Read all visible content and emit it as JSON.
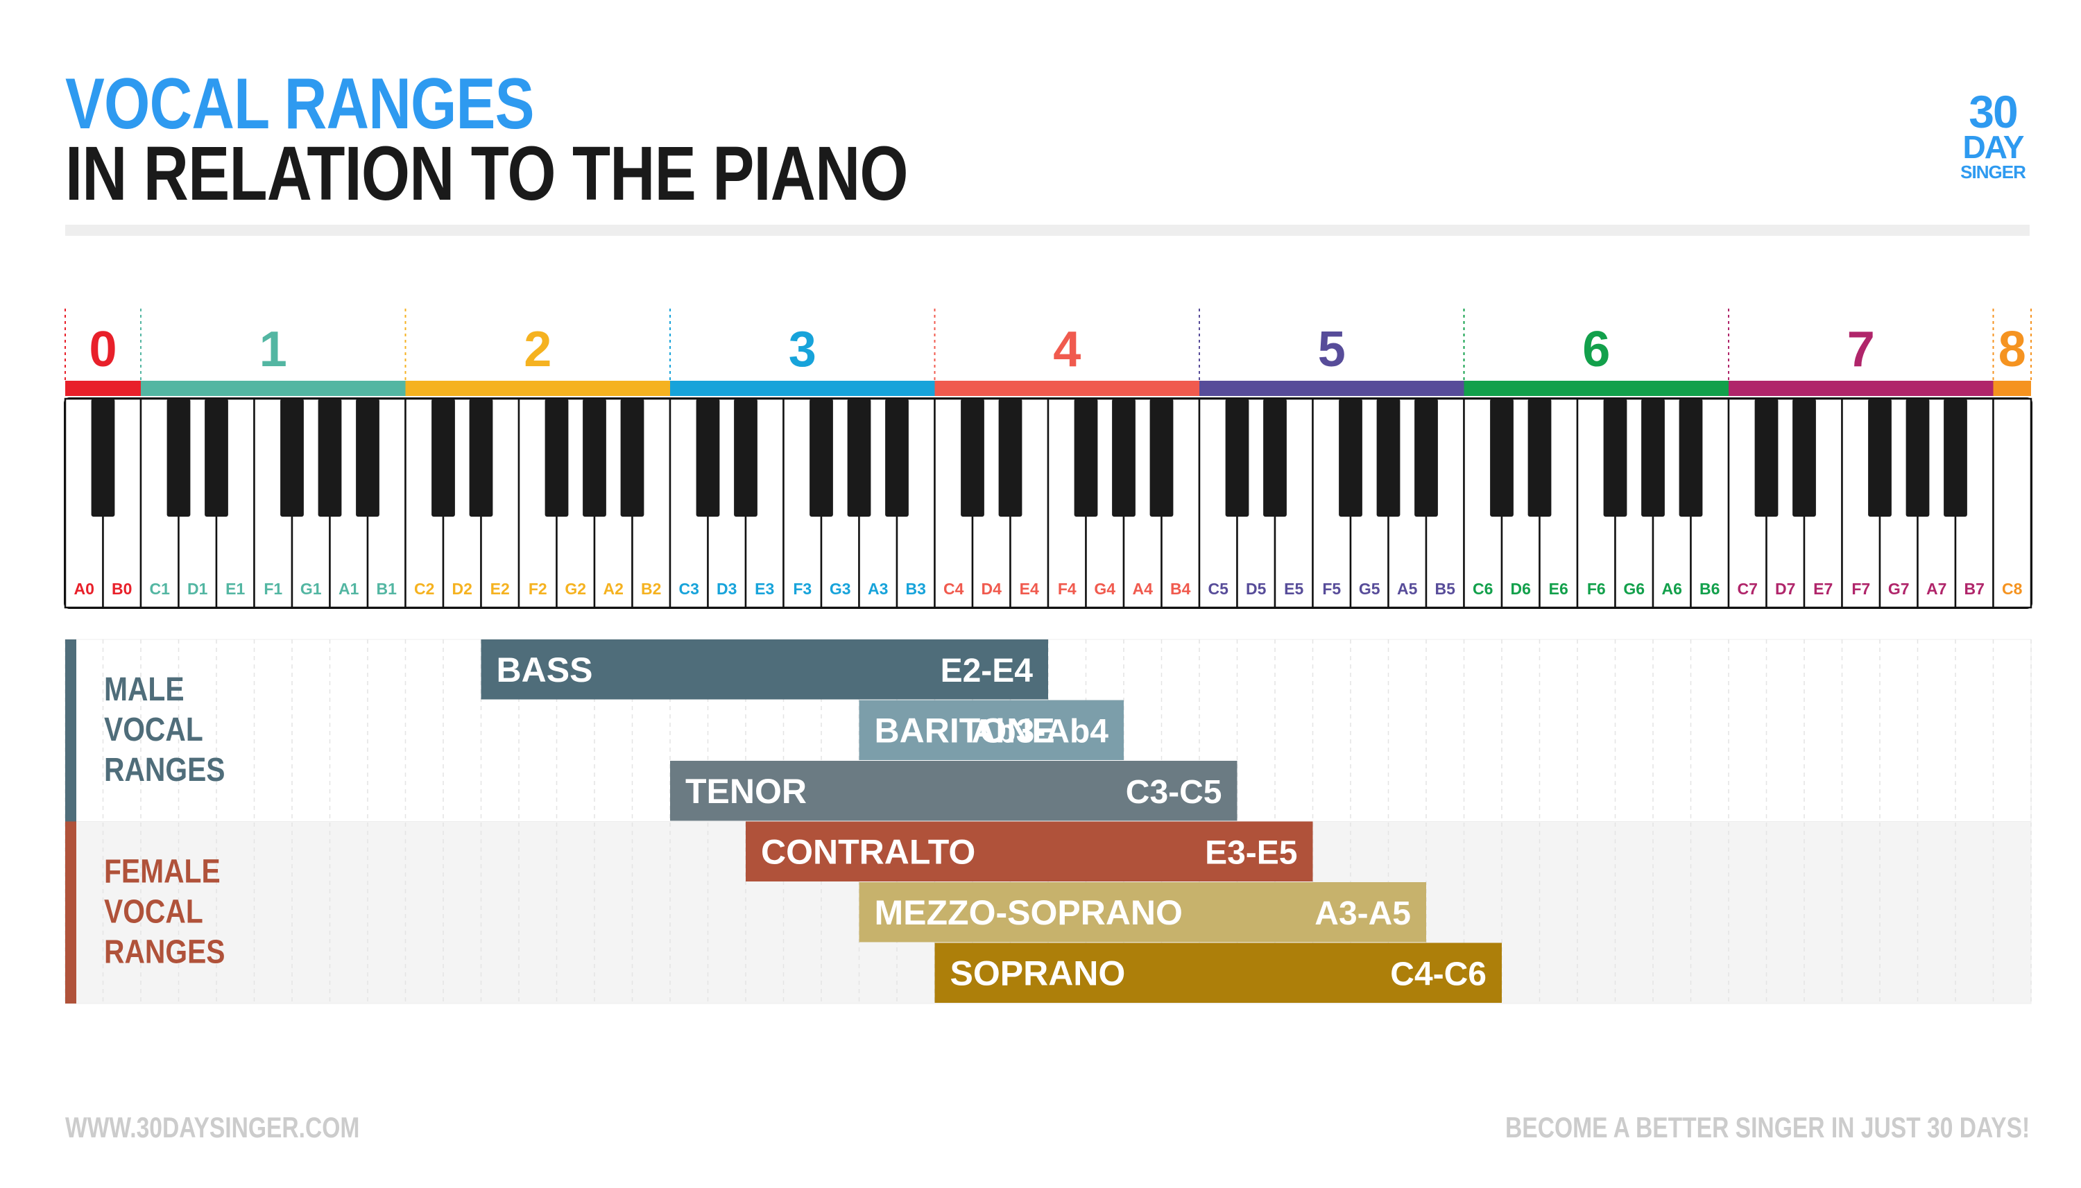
{
  "title": {
    "line1": "VOCAL RANGES",
    "line2": "IN RELATION TO THE PIANO"
  },
  "logo": {
    "line1": "30",
    "line2": "DAY",
    "line3": "SINGER",
    "color": "#2e9af0"
  },
  "footer": {
    "left": "WWW.30DAYSINGER.COM",
    "right": "BECOME A BETTER SINGER IN JUST 30 DAYS!"
  },
  "chart_data": {
    "type": "range-bars-on-piano",
    "octaves": [
      {
        "label": "0",
        "color": "#e8202a"
      },
      {
        "label": "1",
        "color": "#53b6a2"
      },
      {
        "label": "2",
        "color": "#f5b220"
      },
      {
        "label": "3",
        "color": "#17a3da"
      },
      {
        "label": "4",
        "color": "#f05a4e"
      },
      {
        "label": "5",
        "color": "#574c99"
      },
      {
        "label": "6",
        "color": "#12a04b"
      },
      {
        "label": "7",
        "color": "#b0256a"
      },
      {
        "label": "8",
        "color": "#f59320"
      }
    ],
    "keys": [
      {
        "note": "A0",
        "octave": 0
      },
      {
        "note": "B0",
        "octave": 0
      },
      {
        "note": "C1",
        "octave": 1
      },
      {
        "note": "D1",
        "octave": 1
      },
      {
        "note": "E1",
        "octave": 1
      },
      {
        "note": "F1",
        "octave": 1
      },
      {
        "note": "G1",
        "octave": 1
      },
      {
        "note": "A1",
        "octave": 1
      },
      {
        "note": "B1",
        "octave": 1
      },
      {
        "note": "C2",
        "octave": 2
      },
      {
        "note": "D2",
        "octave": 2
      },
      {
        "note": "E2",
        "octave": 2
      },
      {
        "note": "F2",
        "octave": 2
      },
      {
        "note": "G2",
        "octave": 2
      },
      {
        "note": "A2",
        "octave": 2
      },
      {
        "note": "B2",
        "octave": 2
      },
      {
        "note": "C3",
        "octave": 3
      },
      {
        "note": "D3",
        "octave": 3
      },
      {
        "note": "E3",
        "octave": 3
      },
      {
        "note": "F3",
        "octave": 3
      },
      {
        "note": "G3",
        "octave": 3
      },
      {
        "note": "A3",
        "octave": 3
      },
      {
        "note": "B3",
        "octave": 3
      },
      {
        "note": "C4",
        "octave": 4
      },
      {
        "note": "D4",
        "octave": 4
      },
      {
        "note": "E4",
        "octave": 4
      },
      {
        "note": "F4",
        "octave": 4
      },
      {
        "note": "G4",
        "octave": 4
      },
      {
        "note": "A4",
        "octave": 4
      },
      {
        "note": "B4",
        "octave": 4
      },
      {
        "note": "C5",
        "octave": 5
      },
      {
        "note": "D5",
        "octave": 5
      },
      {
        "note": "E5",
        "octave": 5
      },
      {
        "note": "F5",
        "octave": 5
      },
      {
        "note": "G5",
        "octave": 5
      },
      {
        "note": "A5",
        "octave": 5
      },
      {
        "note": "B5",
        "octave": 5
      },
      {
        "note": "C6",
        "octave": 6
      },
      {
        "note": "D6",
        "octave": 6
      },
      {
        "note": "E6",
        "octave": 6
      },
      {
        "note": "F6",
        "octave": 6
      },
      {
        "note": "G6",
        "octave": 6
      },
      {
        "note": "A6",
        "octave": 6
      },
      {
        "note": "B6",
        "octave": 6
      },
      {
        "note": "C7",
        "octave": 7
      },
      {
        "note": "D7",
        "octave": 7
      },
      {
        "note": "E7",
        "octave": 7
      },
      {
        "note": "F7",
        "octave": 7
      },
      {
        "note": "G7",
        "octave": 7
      },
      {
        "note": "A7",
        "octave": 7
      },
      {
        "note": "B7",
        "octave": 7
      },
      {
        "note": "C8",
        "octave": 8
      }
    ],
    "groups": [
      {
        "label": "MALE VOCAL RANGES",
        "color": "#4f6d7a",
        "ranges": [
          {
            "name": "BASS",
            "range": "E2-E4",
            "low": "E2",
            "high": "E4",
            "color": "#4f6d7a"
          },
          {
            "name": "BARITONE",
            "range": "Ab3-Ab4",
            "low": "Ab3",
            "high": "Ab4",
            "color": "#7c9eaa"
          },
          {
            "name": "TENOR",
            "range": "C3-C5",
            "low": "C3",
            "high": "C5",
            "color": "#6b7b83"
          }
        ]
      },
      {
        "label": "FEMALE VOCAL RANGES",
        "color": "#b0523a",
        "ranges": [
          {
            "name": "CONTRALTO",
            "range": "E3-E5",
            "low": "E3",
            "high": "E5",
            "color": "#b0523a"
          },
          {
            "name": "MEZZO-SOPRANO",
            "range": "A3-A5",
            "low": "A3",
            "high": "A5",
            "color": "#c7b26c"
          },
          {
            "name": "SOPRANO",
            "range": "C4-C6",
            "low": "C4",
            "high": "C6",
            "color": "#ad7f0a"
          }
        ]
      }
    ]
  }
}
